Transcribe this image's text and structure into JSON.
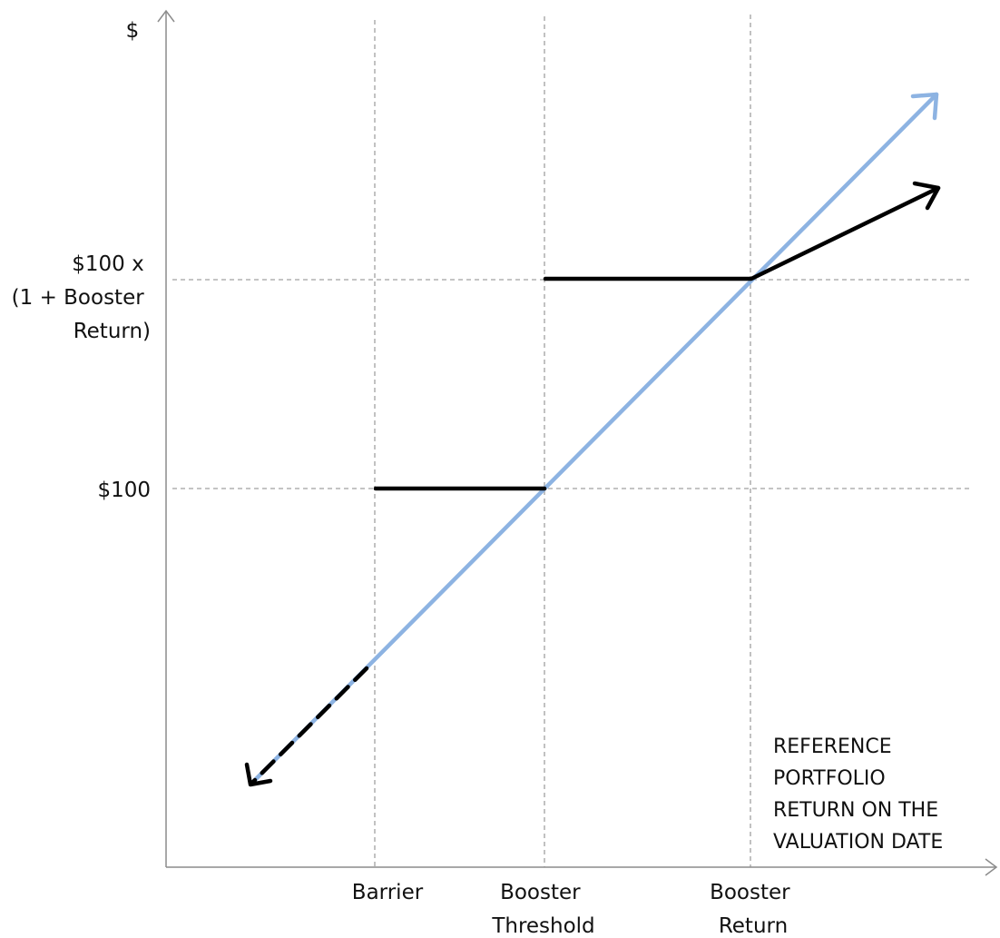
{
  "y_axis": {
    "unit_label": "$",
    "levels": [
      {
        "id": "booster",
        "lines": [
          "$100 x",
          "(1 + Booster",
          "Return)"
        ]
      },
      {
        "id": "par",
        "lines": [
          "$100"
        ]
      }
    ]
  },
  "x_axis": {
    "caption_lines": [
      "REFERENCE",
      "PORTFOLIO",
      "RETURN ON THE",
      "VALUATION DATE"
    ],
    "points": [
      {
        "id": "barrier",
        "lines": [
          "Barrier"
        ]
      },
      {
        "id": "booster-threshold",
        "lines": [
          "Booster",
          "Threshold"
        ]
      },
      {
        "id": "booster-return",
        "lines": [
          "Booster",
          "Return"
        ]
      }
    ]
  },
  "colors": {
    "axis": "#8c8c8c",
    "guide": "#a0a0a0",
    "reference_line": "#8db3e2",
    "payoff_line": "#000000"
  }
}
